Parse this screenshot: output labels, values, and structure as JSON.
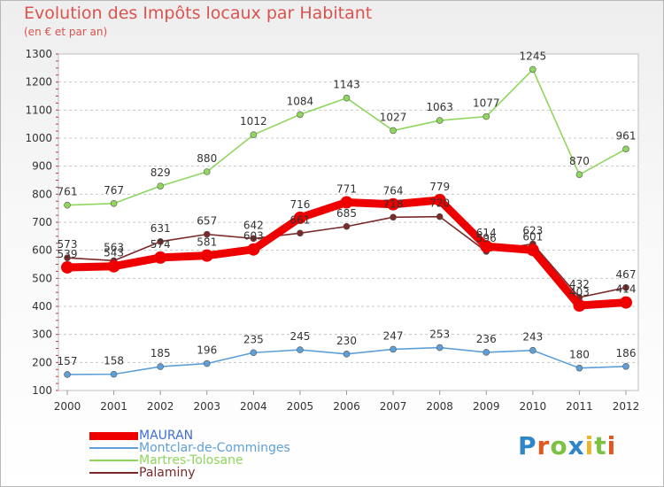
{
  "header": {
    "title": "Evolution des Impôts locaux par Habitant",
    "subtitle": "(en € et par an)"
  },
  "brand": {
    "letters": [
      "P",
      "r",
      "o",
      "x",
      "i",
      "t",
      "i"
    ],
    "colors": [
      "#2e86c8",
      "#e2571f",
      "#7cc242",
      "#2e86c8",
      "#e9b62b",
      "#7cc242",
      "#e2571f"
    ]
  },
  "chart_data": {
    "type": "line",
    "title": "Evolution des Impôts locaux par Habitant",
    "subtitle": "(en € et par an)",
    "xlabel": "",
    "ylabel": "",
    "categories": [
      "2000",
      "2001",
      "2002",
      "2003",
      "2004",
      "2005",
      "2006",
      "2007",
      "2008",
      "2009",
      "2010",
      "2011",
      "2012"
    ],
    "ylim": [
      100,
      1300
    ],
    "yticks": [
      100,
      200,
      300,
      400,
      500,
      600,
      700,
      800,
      900,
      1000,
      1100,
      1200,
      1300
    ],
    "grid": "horizontal dashed",
    "legend_position": "bottom-left",
    "series": [
      {
        "name": "MAURAN",
        "color": "#ee0000",
        "values": [
          539,
          543,
          574,
          581,
          603,
          716,
          771,
          764,
          779,
          614,
          601,
          403,
          414
        ]
      },
      {
        "name": "Montclar-de-Comminges",
        "color": "#5f9fd8",
        "values": [
          157,
          158,
          185,
          196,
          235,
          245,
          230,
          247,
          253,
          236,
          243,
          180,
          186
        ]
      },
      {
        "name": "Martres-Tolosane",
        "color": "#8fd65e",
        "values": [
          761,
          767,
          829,
          880,
          1012,
          1084,
          1143,
          1027,
          1063,
          1077,
          1245,
          870,
          961
        ]
      },
      {
        "name": "Palaminy",
        "color": "#7a2a2a",
        "values": [
          573,
          563,
          631,
          657,
          642,
          661,
          685,
          718,
          720,
          596,
          623,
          432,
          467
        ]
      }
    ]
  }
}
